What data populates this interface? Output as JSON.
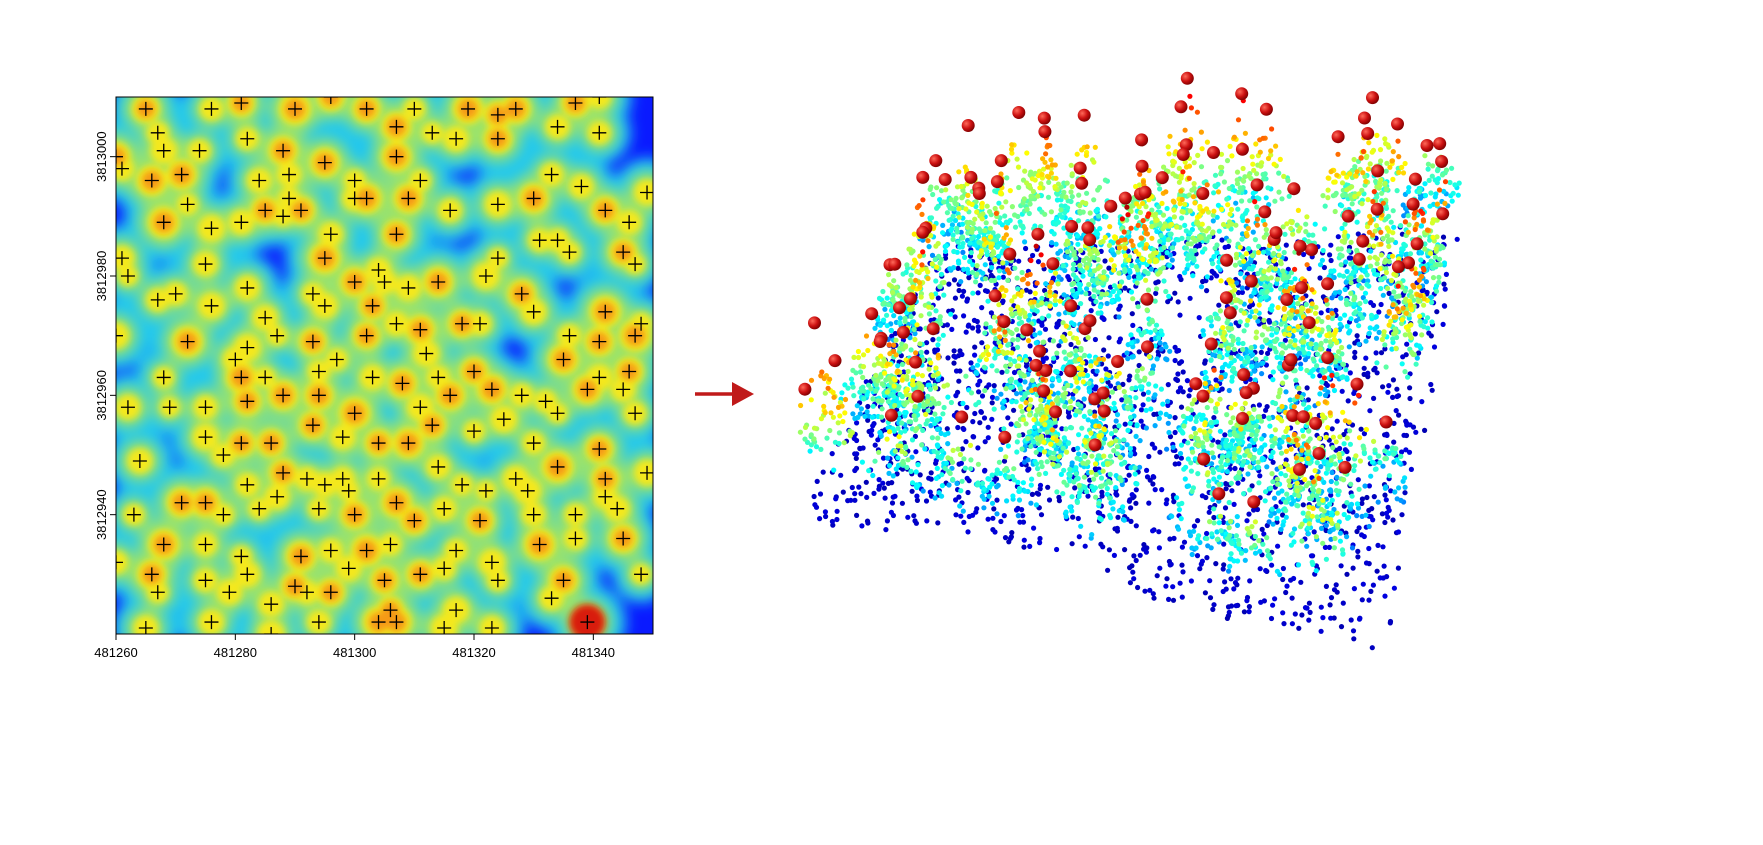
{
  "chart_data": [
    {
      "type": "heatmap",
      "xlim": [
        481260,
        481350
      ],
      "ylim": [
        3812920,
        3813010
      ],
      "x_ticks": [
        481260,
        481280,
        481300,
        481320,
        481340
      ],
      "y_ticks": [
        3812940,
        3812960,
        3812980,
        3813000
      ],
      "x_tick_labels": [
        "481260",
        "481280",
        "481300",
        "481320",
        "481340"
      ],
      "y_tick_labels": [
        "3812940",
        "3812960",
        "3812980",
        "3813000"
      ],
      "colormap": "jet",
      "marker": "+",
      "marker_color": "#000000",
      "tree_tops": [
        [
          481265,
          3813008
        ],
        [
          481276,
          3813008
        ],
        [
          481281,
          3813009
        ],
        [
          481290,
          3813008
        ],
        [
          481296,
          3813010
        ],
        [
          481302,
          3813008
        ],
        [
          481310,
          3813008
        ],
        [
          481319,
          3813008
        ],
        [
          481324,
          3813007
        ],
        [
          481327,
          3813008
        ],
        [
          481337,
          3813009
        ],
        [
          481341,
          3813010
        ],
        [
          481260,
          3813000
        ],
        [
          481267,
          3813004
        ],
        [
          481268,
          3813001
        ],
        [
          481274,
          3813001
        ],
        [
          481282,
          3813003
        ],
        [
          481288,
          3813001
        ],
        [
          481307,
          3813000
        ],
        [
          481307,
          3813005
        ],
        [
          481313,
          3813004
        ],
        [
          481317,
          3813003
        ],
        [
          481324,
          3813003
        ],
        [
          481334,
          3813005
        ],
        [
          481341,
          3813004
        ],
        [
          481261,
          3812998
        ],
        [
          481266,
          3812996
        ],
        [
          481271,
          3812997
        ],
        [
          481284,
          3812996
        ],
        [
          481289,
          3812997
        ],
        [
          481295,
          3812999
        ],
        [
          481300,
          3812996
        ],
        [
          481311,
          3812996
        ],
        [
          481333,
          3812997
        ],
        [
          481338,
          3812995
        ],
        [
          481349,
          3812994
        ],
        [
          481268,
          3812989
        ],
        [
          481281,
          3812989
        ],
        [
          481285,
          3812991
        ],
        [
          481289,
          3812993
        ],
        [
          481300,
          3812993
        ],
        [
          481302,
          3812993
        ],
        [
          481309,
          3812993
        ],
        [
          481316,
          3812991
        ],
        [
          481324,
          3812992
        ],
        [
          481330,
          3812993
        ],
        [
          481342,
          3812991
        ],
        [
          481272,
          3812992
        ],
        [
          481276,
          3812988
        ],
        [
          481288,
          3812990
        ],
        [
          481291,
          3812991
        ],
        [
          481296,
          3812987
        ],
        [
          481307,
          3812987
        ],
        [
          481334,
          3812986
        ],
        [
          481346,
          3812989
        ],
        [
          481261,
          3812983
        ],
        [
          481275,
          3812982
        ],
        [
          481295,
          3812983
        ],
        [
          481304,
          3812981
        ],
        [
          481324,
          3812983
        ],
        [
          481331,
          3812986
        ],
        [
          481336,
          3812984
        ],
        [
          481345,
          3812984
        ],
        [
          481262,
          3812980
        ],
        [
          481267,
          3812976
        ],
        [
          481270,
          3812977
        ],
        [
          481282,
          3812978
        ],
        [
          481293,
          3812977
        ],
        [
          481300,
          3812979
        ],
        [
          481305,
          3812979
        ],
        [
          481309,
          3812978
        ],
        [
          481314,
          3812979
        ],
        [
          481322,
          3812980
        ],
        [
          481328,
          3812977
        ],
        [
          481347,
          3812982
        ],
        [
          481276,
          3812975
        ],
        [
          481285,
          3812973
        ],
        [
          481295,
          3812975
        ],
        [
          481303,
          3812975
        ],
        [
          481321,
          3812972
        ],
        [
          481330,
          3812974
        ],
        [
          481342,
          3812974
        ],
        [
          481348,
          3812972
        ],
        [
          481260,
          3812970
        ],
        [
          481272,
          3812969
        ],
        [
          481282,
          3812968
        ],
        [
          481287,
          3812970
        ],
        [
          481293,
          3812969
        ],
        [
          481302,
          3812970
        ],
        [
          481307,
          3812972
        ],
        [
          481311,
          3812971
        ],
        [
          481318,
          3812972
        ],
        [
          481336,
          3812970
        ],
        [
          481341,
          3812969
        ],
        [
          481347,
          3812970
        ],
        [
          481280,
          3812966
        ],
        [
          481297,
          3812966
        ],
        [
          481312,
          3812967
        ],
        [
          481320,
          3812964
        ],
        [
          481335,
          3812966
        ],
        [
          481341,
          3812963
        ],
        [
          481346,
          3812964
        ],
        [
          481268,
          3812963
        ],
        [
          481281,
          3812963
        ],
        [
          481285,
          3812963
        ],
        [
          481294,
          3812964
        ],
        [
          481303,
          3812963
        ],
        [
          481308,
          3812962
        ],
        [
          481314,
          3812963
        ],
        [
          481323,
          3812961
        ],
        [
          481332,
          3812959
        ],
        [
          481339,
          3812961
        ],
        [
          481345,
          3812961
        ],
        [
          481262,
          3812958
        ],
        [
          481269,
          3812958
        ],
        [
          481275,
          3812958
        ],
        [
          481282,
          3812959
        ],
        [
          481288,
          3812960
        ],
        [
          481294,
          3812960
        ],
        [
          481300,
          3812957
        ],
        [
          481311,
          3812958
        ],
        [
          481316,
          3812960
        ],
        [
          481328,
          3812960
        ],
        [
          481334,
          3812957
        ],
        [
          481347,
          3812957
        ],
        [
          481275,
          3812953
        ],
        [
          481281,
          3812952
        ],
        [
          481286,
          3812952
        ],
        [
          481293,
          3812955
        ],
        [
          481298,
          3812953
        ],
        [
          481304,
          3812952
        ],
        [
          481309,
          3812952
        ],
        [
          481313,
          3812955
        ],
        [
          481320,
          3812954
        ],
        [
          481325,
          3812956
        ],
        [
          481330,
          3812952
        ],
        [
          481341,
          3812951
        ],
        [
          481264,
          3812949
        ],
        [
          481278,
          3812950
        ],
        [
          481288,
          3812947
        ],
        [
          481292,
          3812946
        ],
        [
          481298,
          3812946
        ],
        [
          481304,
          3812946
        ],
        [
          481314,
          3812948
        ],
        [
          481318,
          3812945
        ],
        [
          481327,
          3812946
        ],
        [
          481334,
          3812948
        ],
        [
          481342,
          3812946
        ],
        [
          481349,
          3812947
        ],
        [
          481271,
          3812942
        ],
        [
          481275,
          3812942
        ],
        [
          481282,
          3812945
        ],
        [
          481287,
          3812943
        ],
        [
          481295,
          3812945
        ],
        [
          481299,
          3812944
        ],
        [
          481307,
          3812942
        ],
        [
          481315,
          3812941
        ],
        [
          481322,
          3812944
        ],
        [
          481329,
          3812944
        ],
        [
          481342,
          3812943
        ],
        [
          481263,
          3812940
        ],
        [
          481278,
          3812940
        ],
        [
          481284,
          3812941
        ],
        [
          481294,
          3812941
        ],
        [
          481300,
          3812940
        ],
        [
          481310,
          3812939
        ],
        [
          481321,
          3812939
        ],
        [
          481330,
          3812940
        ],
        [
          481337,
          3812940
        ],
        [
          481344,
          3812941
        ],
        [
          481268,
          3812935
        ],
        [
          481275,
          3812935
        ],
        [
          481281,
          3812933
        ],
        [
          481291,
          3812933
        ],
        [
          481296,
          3812934
        ],
        [
          481302,
          3812934
        ],
        [
          481306,
          3812935
        ],
        [
          481317,
          3812934
        ],
        [
          481323,
          3812932
        ],
        [
          481331,
          3812935
        ],
        [
          481337,
          3812936
        ],
        [
          481345,
          3812936
        ],
        [
          481260,
          3812932
        ],
        [
          481266,
          3812930
        ],
        [
          481275,
          3812929
        ],
        [
          481282,
          3812930
        ],
        [
          481290,
          3812928
        ],
        [
          481299,
          3812931
        ],
        [
          481305,
          3812929
        ],
        [
          481311,
          3812930
        ],
        [
          481315,
          3812931
        ],
        [
          481324,
          3812929
        ],
        [
          481335,
          3812929
        ],
        [
          481348,
          3812930
        ],
        [
          481267,
          3812927
        ],
        [
          481279,
          3812927
        ],
        [
          481286,
          3812925
        ],
        [
          481292,
          3812927
        ],
        [
          481296,
          3812927
        ],
        [
          481306,
          3812924
        ],
        [
          481317,
          3812924
        ],
        [
          481333,
          3812926
        ],
        [
          481265,
          3812921
        ],
        [
          481276,
          3812922
        ],
        [
          481286,
          3812920
        ],
        [
          481294,
          3812922
        ],
        [
          481304,
          3812922
        ],
        [
          481307,
          3812922
        ],
        [
          481315,
          3812921
        ],
        [
          481323,
          3812921
        ],
        [
          481339,
          3812922
        ]
      ]
    },
    {
      "type": "scatter",
      "colormap": "jet",
      "treetop_marker_color": "#cc1111"
    }
  ],
  "arrow": {
    "color": "#c01a1a",
    "icon": "right-arrow-icon"
  },
  "colormap_stops": [
    "#00008f",
    "#0000ff",
    "#0080ff",
    "#00ffff",
    "#80ff80",
    "#ffff00",
    "#ff8000",
    "#ff0000",
    "#800000"
  ]
}
